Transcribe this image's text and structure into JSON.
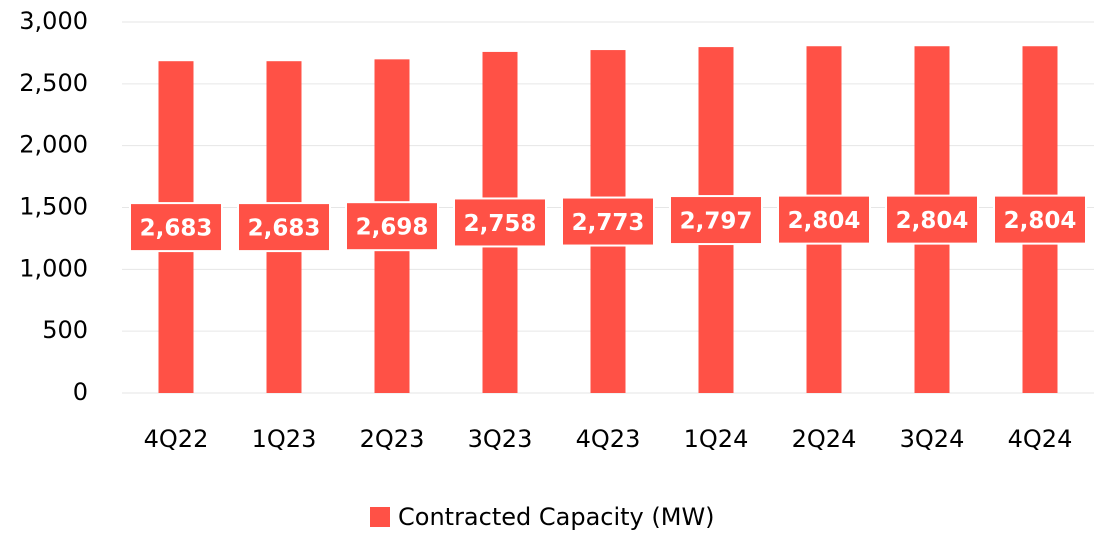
{
  "chart_data": {
    "type": "bar",
    "categories": [
      "4Q22",
      "1Q23",
      "2Q23",
      "3Q23",
      "4Q23",
      "1Q24",
      "2Q24",
      "3Q24",
      "4Q24"
    ],
    "series": [
      {
        "name": "Contracted Capacity (MW)",
        "color": "#ff5146",
        "values": [
          2683,
          2683,
          2698,
          2758,
          2773,
          2797,
          2804,
          2804,
          2804
        ],
        "value_labels": [
          "2,683",
          "2,683",
          "2,698",
          "2,758",
          "2,773",
          "2,797",
          "2,804",
          "2,804",
          "2,804"
        ]
      }
    ],
    "ylim": [
      0,
      3000
    ],
    "yticks": [
      0,
      500,
      {
        "value": 1000,
        "label": "1,000"
      },
      {
        "value": 1500,
        "label": "1,500"
      },
      {
        "value": 2000,
        "label": "2,000"
      },
      {
        "value": 2500,
        "label": "2,500"
      },
      {
        "value": 3000,
        "label": "3,000"
      }
    ],
    "grid": true,
    "legend": "bottom"
  }
}
